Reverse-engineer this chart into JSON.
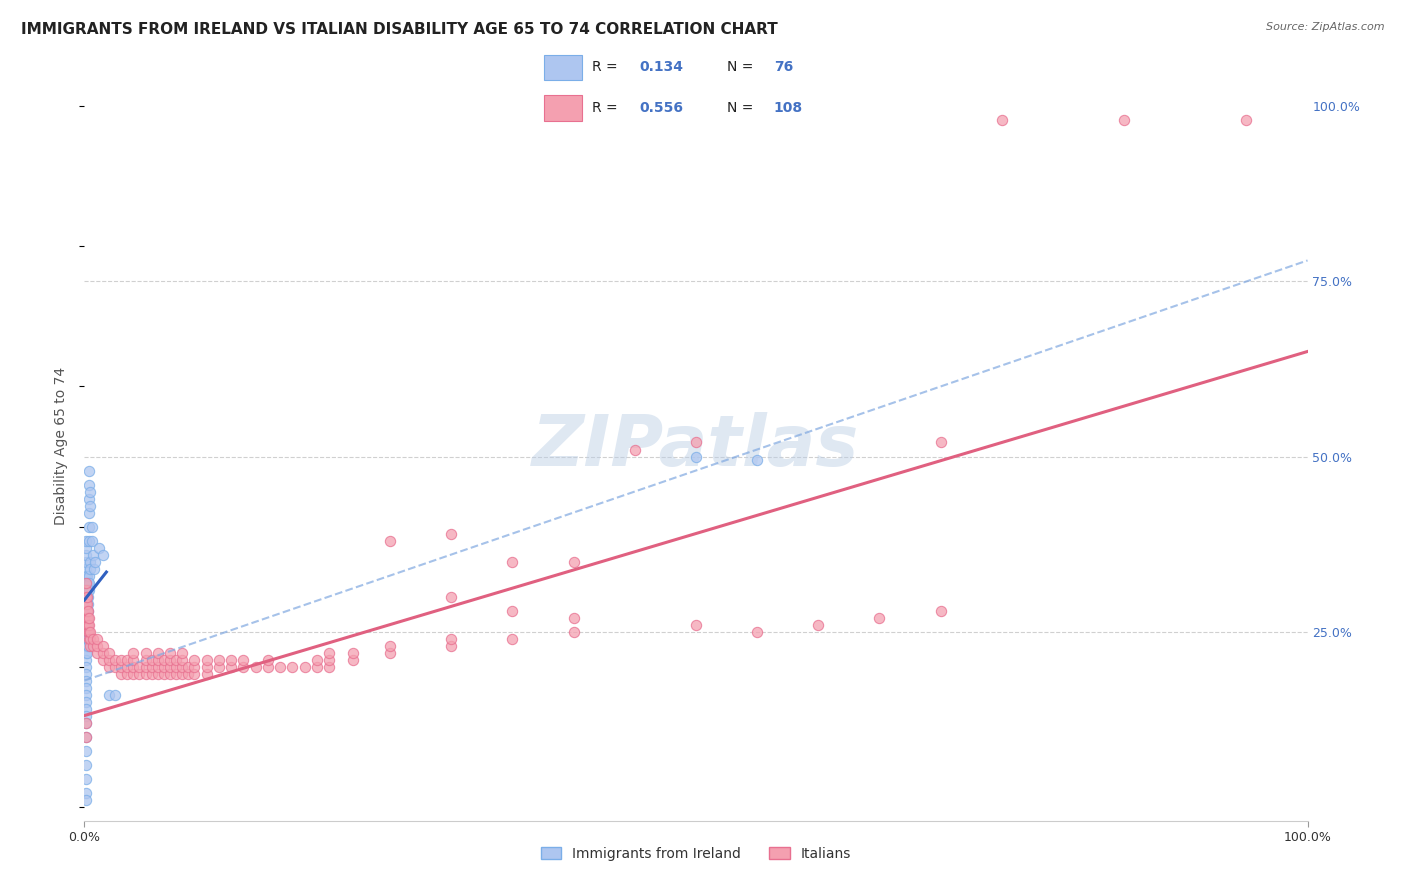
{
  "title": "IMMIGRANTS FROM IRELAND VS ITALIAN DISABILITY AGE 65 TO 74 CORRELATION CHART",
  "source": "Source: ZipAtlas.com",
  "ylabel": "Disability Age 65 to 74",
  "xlim": [
    0,
    1
  ],
  "ylim": [
    -0.02,
    1.05
  ],
  "ireland_color": "#7baee8",
  "ireland_fill": "#aec6f0",
  "italy_color": "#e87090",
  "italy_fill": "#f4a0b0",
  "ireland_line_color": "#3060c0",
  "ireland_dash_color": "#80a8e0",
  "italy_line_color": "#e06080",
  "grid_color": "#d0d0d0",
  "scatter_size": 55,
  "watermark": "ZIPatlas",
  "ireland_scatter": [
    [
      0.001,
      0.27
    ],
    [
      0.001,
      0.29
    ],
    [
      0.001,
      0.3
    ],
    [
      0.001,
      0.31
    ],
    [
      0.001,
      0.32
    ],
    [
      0.001,
      0.33
    ],
    [
      0.001,
      0.34
    ],
    [
      0.001,
      0.35
    ],
    [
      0.001,
      0.36
    ],
    [
      0.001,
      0.37
    ],
    [
      0.001,
      0.38
    ],
    [
      0.001,
      0.26
    ],
    [
      0.001,
      0.25
    ],
    [
      0.001,
      0.24
    ],
    [
      0.001,
      0.23
    ],
    [
      0.001,
      0.22
    ],
    [
      0.001,
      0.21
    ],
    [
      0.001,
      0.2
    ],
    [
      0.001,
      0.19
    ],
    [
      0.001,
      0.18
    ],
    [
      0.001,
      0.17
    ],
    [
      0.001,
      0.16
    ],
    [
      0.001,
      0.15
    ],
    [
      0.001,
      0.14
    ],
    [
      0.001,
      0.13
    ],
    [
      0.001,
      0.12
    ],
    [
      0.001,
      0.1
    ],
    [
      0.001,
      0.08
    ],
    [
      0.001,
      0.06
    ],
    [
      0.001,
      0.04
    ],
    [
      0.002,
      0.27
    ],
    [
      0.002,
      0.28
    ],
    [
      0.002,
      0.3
    ],
    [
      0.002,
      0.31
    ],
    [
      0.002,
      0.32
    ],
    [
      0.002,
      0.33
    ],
    [
      0.002,
      0.26
    ],
    [
      0.002,
      0.25
    ],
    [
      0.002,
      0.24
    ],
    [
      0.002,
      0.22
    ],
    [
      0.003,
      0.29
    ],
    [
      0.003,
      0.3
    ],
    [
      0.003,
      0.31
    ],
    [
      0.003,
      0.32
    ],
    [
      0.003,
      0.28
    ],
    [
      0.003,
      0.27
    ],
    [
      0.003,
      0.26
    ],
    [
      0.003,
      0.25
    ],
    [
      0.003,
      0.24
    ],
    [
      0.003,
      0.23
    ],
    [
      0.004,
      0.38
    ],
    [
      0.004,
      0.4
    ],
    [
      0.004,
      0.42
    ],
    [
      0.004,
      0.44
    ],
    [
      0.004,
      0.46
    ],
    [
      0.004,
      0.48
    ],
    [
      0.004,
      0.33
    ],
    [
      0.004,
      0.32
    ],
    [
      0.004,
      0.31
    ],
    [
      0.005,
      0.43
    ],
    [
      0.005,
      0.45
    ],
    [
      0.005,
      0.35
    ],
    [
      0.005,
      0.34
    ],
    [
      0.006,
      0.4
    ],
    [
      0.006,
      0.38
    ],
    [
      0.007,
      0.36
    ],
    [
      0.008,
      0.34
    ],
    [
      0.009,
      0.35
    ],
    [
      0.012,
      0.37
    ],
    [
      0.015,
      0.36
    ],
    [
      0.02,
      0.16
    ],
    [
      0.025,
      0.16
    ],
    [
      0.5,
      0.5
    ],
    [
      0.55,
      0.495
    ],
    [
      0.001,
      0.02
    ],
    [
      0.001,
      0.01
    ]
  ],
  "italy_scatter": [
    [
      0.001,
      0.27
    ],
    [
      0.001,
      0.29
    ],
    [
      0.001,
      0.3
    ],
    [
      0.001,
      0.31
    ],
    [
      0.001,
      0.32
    ],
    [
      0.002,
      0.26
    ],
    [
      0.002,
      0.27
    ],
    [
      0.002,
      0.28
    ],
    [
      0.002,
      0.29
    ],
    [
      0.002,
      0.3
    ],
    [
      0.003,
      0.25
    ],
    [
      0.003,
      0.26
    ],
    [
      0.003,
      0.27
    ],
    [
      0.003,
      0.28
    ],
    [
      0.004,
      0.24
    ],
    [
      0.004,
      0.25
    ],
    [
      0.004,
      0.26
    ],
    [
      0.004,
      0.27
    ],
    [
      0.005,
      0.23
    ],
    [
      0.005,
      0.24
    ],
    [
      0.005,
      0.25
    ],
    [
      0.007,
      0.23
    ],
    [
      0.007,
      0.24
    ],
    [
      0.01,
      0.22
    ],
    [
      0.01,
      0.23
    ],
    [
      0.01,
      0.24
    ],
    [
      0.015,
      0.21
    ],
    [
      0.015,
      0.22
    ],
    [
      0.015,
      0.23
    ],
    [
      0.02,
      0.2
    ],
    [
      0.02,
      0.21
    ],
    [
      0.02,
      0.22
    ],
    [
      0.025,
      0.2
    ],
    [
      0.025,
      0.21
    ],
    [
      0.03,
      0.19
    ],
    [
      0.03,
      0.2
    ],
    [
      0.03,
      0.21
    ],
    [
      0.035,
      0.19
    ],
    [
      0.035,
      0.2
    ],
    [
      0.035,
      0.21
    ],
    [
      0.04,
      0.19
    ],
    [
      0.04,
      0.2
    ],
    [
      0.04,
      0.21
    ],
    [
      0.04,
      0.22
    ],
    [
      0.045,
      0.19
    ],
    [
      0.045,
      0.2
    ],
    [
      0.05,
      0.19
    ],
    [
      0.05,
      0.2
    ],
    [
      0.05,
      0.21
    ],
    [
      0.05,
      0.22
    ],
    [
      0.055,
      0.19
    ],
    [
      0.055,
      0.2
    ],
    [
      0.055,
      0.21
    ],
    [
      0.06,
      0.19
    ],
    [
      0.06,
      0.2
    ],
    [
      0.06,
      0.21
    ],
    [
      0.06,
      0.22
    ],
    [
      0.065,
      0.19
    ],
    [
      0.065,
      0.2
    ],
    [
      0.065,
      0.21
    ],
    [
      0.07,
      0.19
    ],
    [
      0.07,
      0.2
    ],
    [
      0.07,
      0.21
    ],
    [
      0.07,
      0.22
    ],
    [
      0.075,
      0.19
    ],
    [
      0.075,
      0.2
    ],
    [
      0.075,
      0.21
    ],
    [
      0.08,
      0.19
    ],
    [
      0.08,
      0.2
    ],
    [
      0.08,
      0.21
    ],
    [
      0.08,
      0.22
    ],
    [
      0.085,
      0.19
    ],
    [
      0.085,
      0.2
    ],
    [
      0.09,
      0.19
    ],
    [
      0.09,
      0.2
    ],
    [
      0.09,
      0.21
    ],
    [
      0.1,
      0.19
    ],
    [
      0.1,
      0.2
    ],
    [
      0.1,
      0.21
    ],
    [
      0.11,
      0.2
    ],
    [
      0.11,
      0.21
    ],
    [
      0.12,
      0.2
    ],
    [
      0.12,
      0.21
    ],
    [
      0.13,
      0.2
    ],
    [
      0.13,
      0.21
    ],
    [
      0.14,
      0.2
    ],
    [
      0.15,
      0.2
    ],
    [
      0.15,
      0.21
    ],
    [
      0.16,
      0.2
    ],
    [
      0.17,
      0.2
    ],
    [
      0.18,
      0.2
    ],
    [
      0.19,
      0.2
    ],
    [
      0.19,
      0.21
    ],
    [
      0.2,
      0.2
    ],
    [
      0.2,
      0.21
    ],
    [
      0.2,
      0.22
    ],
    [
      0.22,
      0.21
    ],
    [
      0.22,
      0.22
    ],
    [
      0.25,
      0.22
    ],
    [
      0.25,
      0.23
    ],
    [
      0.3,
      0.23
    ],
    [
      0.3,
      0.24
    ],
    [
      0.35,
      0.24
    ],
    [
      0.35,
      0.35
    ],
    [
      0.4,
      0.25
    ],
    [
      0.4,
      0.35
    ],
    [
      0.25,
      0.38
    ],
    [
      0.3,
      0.39
    ],
    [
      0.45,
      0.51
    ],
    [
      0.5,
      0.52
    ],
    [
      0.7,
      0.52
    ],
    [
      0.75,
      0.98
    ],
    [
      0.85,
      0.98
    ],
    [
      0.95,
      0.98
    ],
    [
      0.001,
      0.1
    ],
    [
      0.001,
      0.12
    ],
    [
      0.3,
      0.3
    ],
    [
      0.35,
      0.28
    ],
    [
      0.4,
      0.27
    ],
    [
      0.5,
      0.26
    ],
    [
      0.55,
      0.25
    ],
    [
      0.6,
      0.26
    ],
    [
      0.65,
      0.27
    ],
    [
      0.7,
      0.28
    ]
  ],
  "ireland_solid_line": [
    [
      0.0,
      0.295
    ],
    [
      0.018,
      0.335
    ]
  ],
  "ireland_dash_line": [
    [
      0.0,
      0.18
    ],
    [
      1.0,
      0.78
    ]
  ],
  "italy_line": [
    [
      0.0,
      0.13
    ],
    [
      1.0,
      0.65
    ]
  ]
}
